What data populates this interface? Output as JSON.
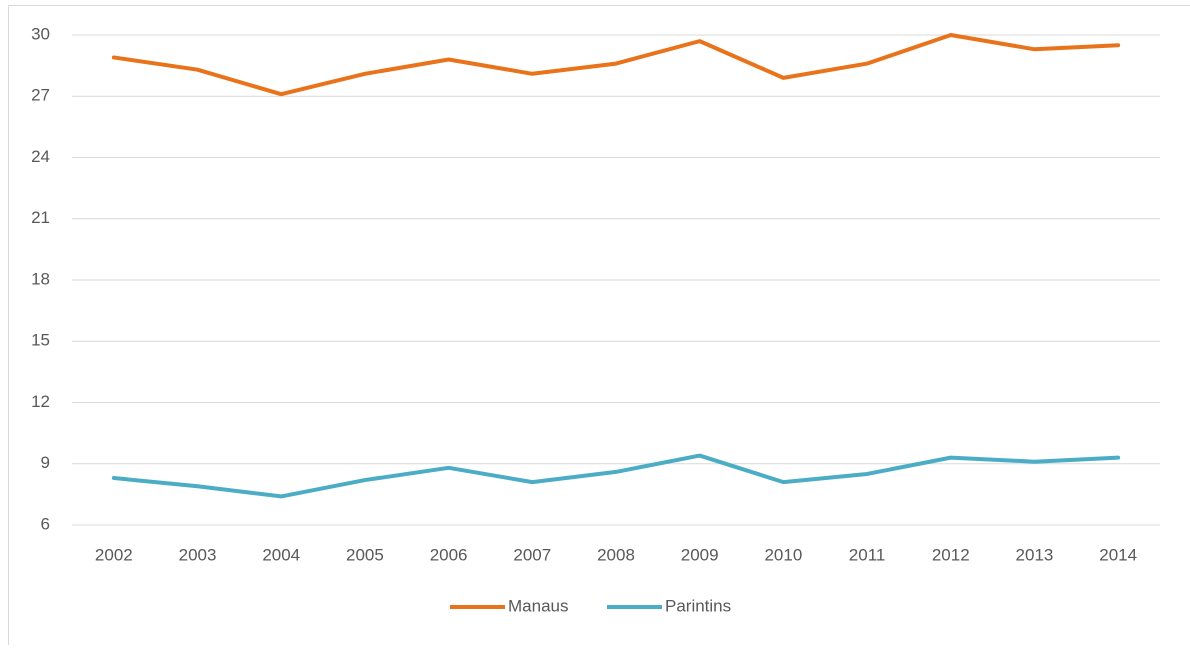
{
  "chart_data": {
    "type": "line",
    "categories": [
      "2002",
      "2003",
      "2004",
      "2005",
      "2006",
      "2007",
      "2008",
      "2009",
      "2010",
      "2011",
      "2012",
      "2013",
      "2014"
    ],
    "series": [
      {
        "name": "Manaus",
        "color": "#e8731b",
        "values": [
          28.9,
          28.3,
          27.1,
          28.1,
          28.8,
          28.1,
          28.6,
          29.7,
          27.9,
          28.6,
          30.0,
          29.3,
          29.5
        ]
      },
      {
        "name": "Parintins",
        "color": "#4bacc6",
        "values": [
          8.3,
          7.9,
          7.4,
          8.2,
          8.8,
          8.1,
          8.6,
          9.4,
          8.1,
          8.5,
          9.3,
          9.1,
          9.3
        ]
      }
    ],
    "ylim": [
      6,
      30
    ],
    "yticks": [
      6,
      9,
      12,
      15,
      18,
      21,
      24,
      27,
      30
    ],
    "grid": true,
    "legend": "bottom"
  }
}
